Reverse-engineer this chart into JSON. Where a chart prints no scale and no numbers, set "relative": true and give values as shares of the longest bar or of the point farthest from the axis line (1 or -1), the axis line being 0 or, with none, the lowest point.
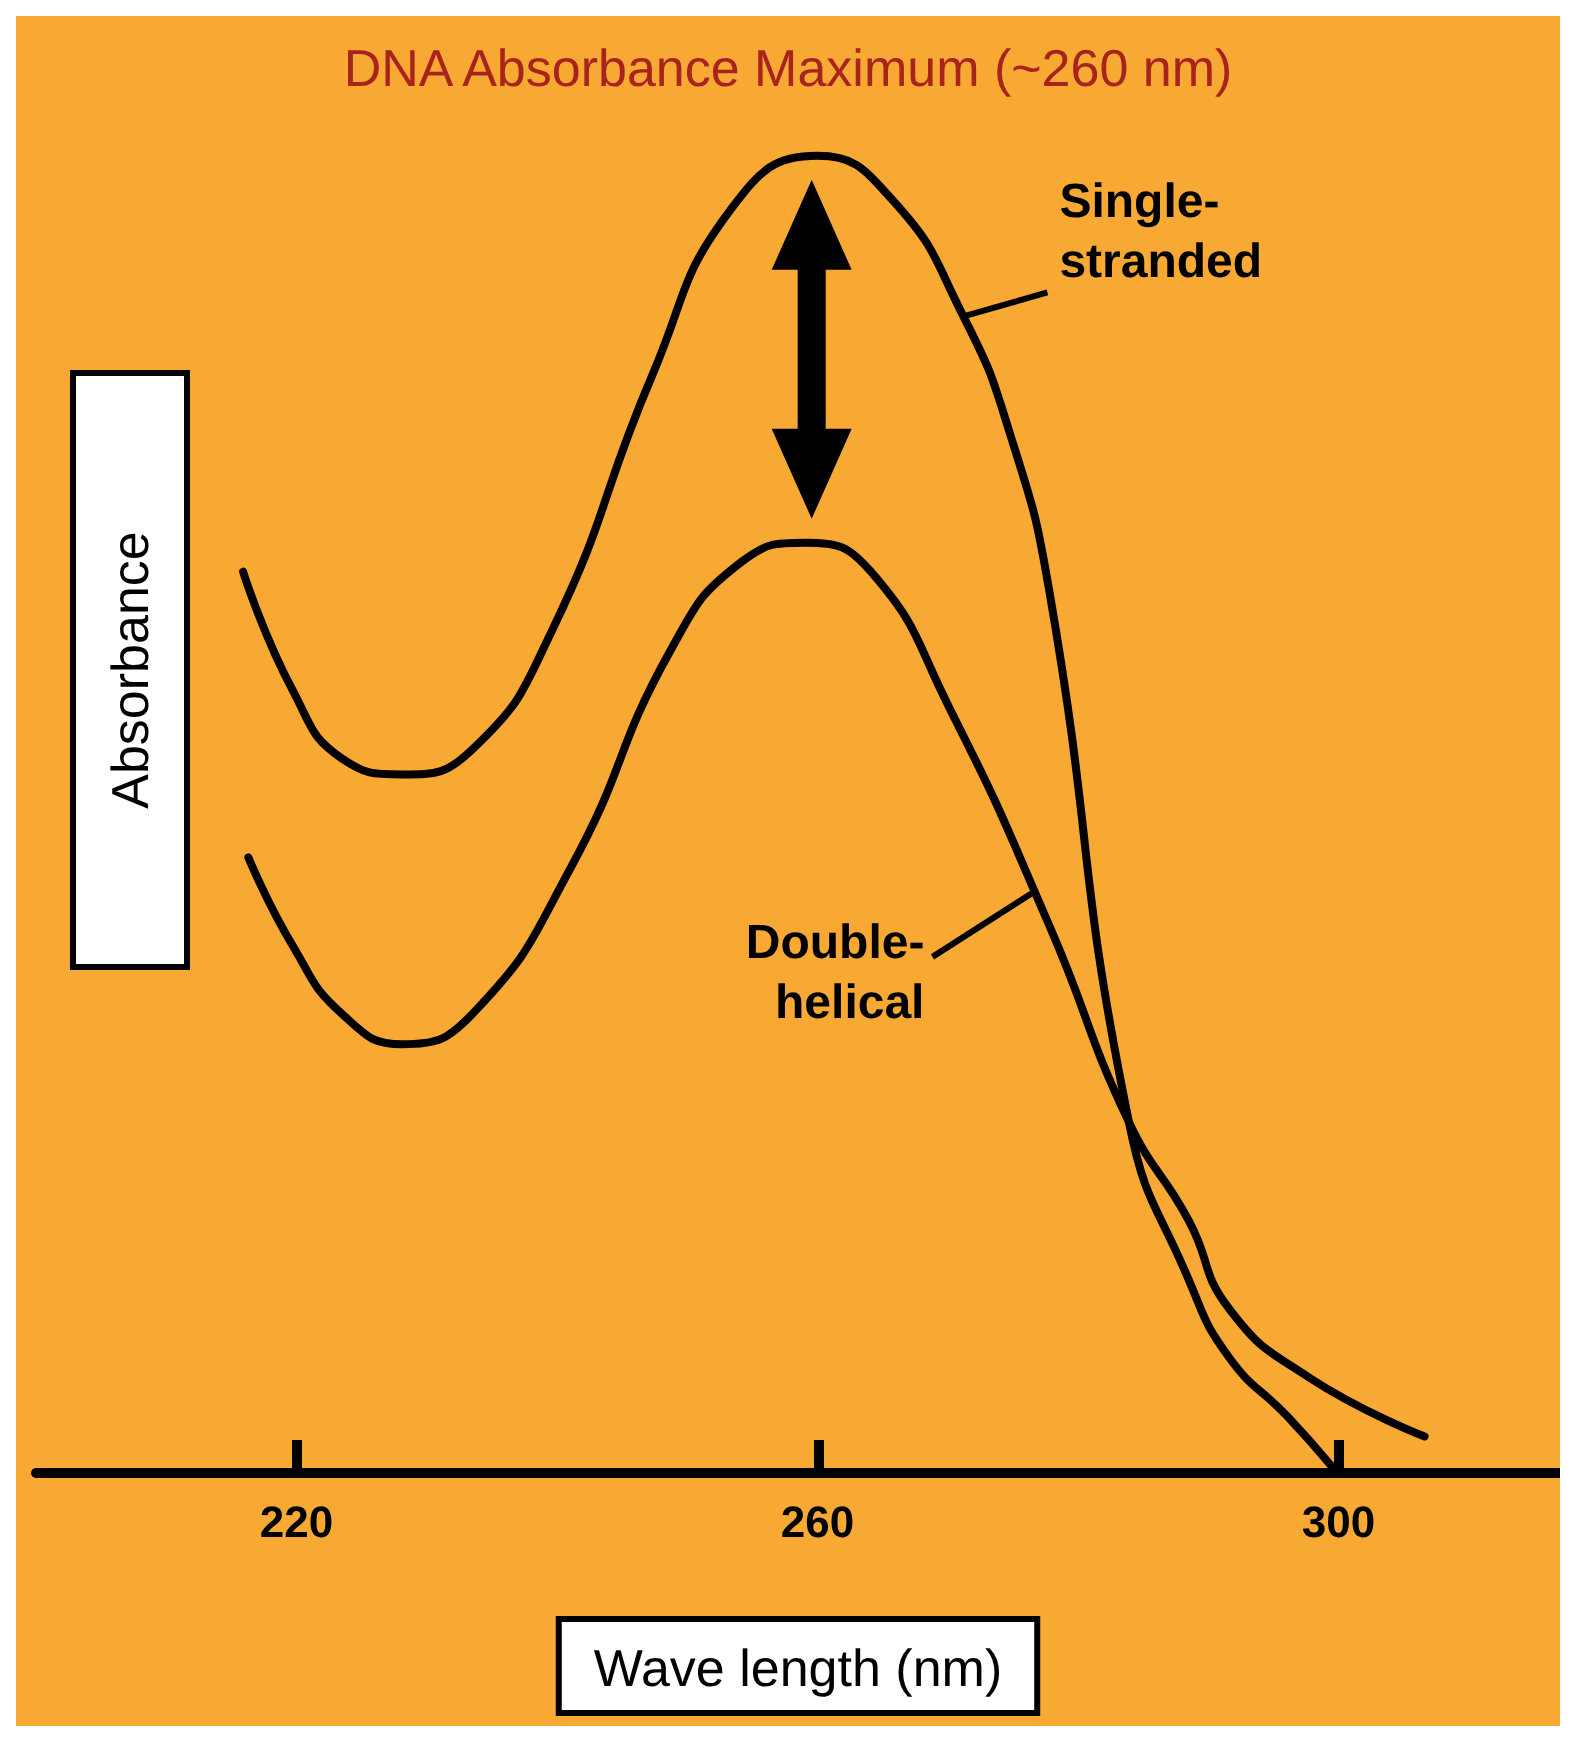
{
  "chart_data": {
    "type": "line",
    "title": "DNA Absorbance Maximum (~260 nm)",
    "xlabel": "Wave length (nm)",
    "ylabel": "Absorbance",
    "relative": true,
    "xlim": [
      200,
      317
    ],
    "xticks": [
      220,
      260,
      300
    ],
    "grid": false,
    "marker": "none",
    "line_style": "solid",
    "series": [
      {
        "color": "#000000",
        "x": [
          215.9,
          219.7,
          223.5,
          228.1,
          233.5,
          239.6,
          247.3,
          253.4,
          260,
          265.7,
          271.2,
          274.8,
          277.8,
          283.9,
          288.5,
          291.6,
          296.1,
          299.5
        ],
        "values": [
          0.684,
          0.594,
          0.542,
          0.53,
          0.549,
          0.639,
          0.833,
          0.96,
          1.0,
          0.967,
          0.878,
          0.788,
          0.669,
          0.266,
          0.146,
          0.087,
          0.042,
          0.004
        ]
      },
      {
        "color": "#000000",
        "x": [
          216.3,
          219.7,
          223.5,
          228.1,
          233.5,
          241.1,
          248.7,
          254.1,
          259.1,
          264.1,
          270.2,
          277.8,
          283.9,
          288.5,
          291.6,
          297.7,
          306.6
        ],
        "values": [
          0.467,
          0.4,
          0.348,
          0.325,
          0.348,
          0.46,
          0.624,
          0.691,
          0.706,
          0.684,
          0.579,
          0.415,
          0.266,
          0.191,
          0.124,
          0.072,
          0.027
        ]
      }
    ],
    "annotations": [
      {
        "text": "Single-\nstranded",
        "x": 271.2,
        "y": 0.878
      },
      {
        "text": "Double-\nhelical",
        "x": 276.5,
        "y": 0.44
      }
    ]
  }
}
